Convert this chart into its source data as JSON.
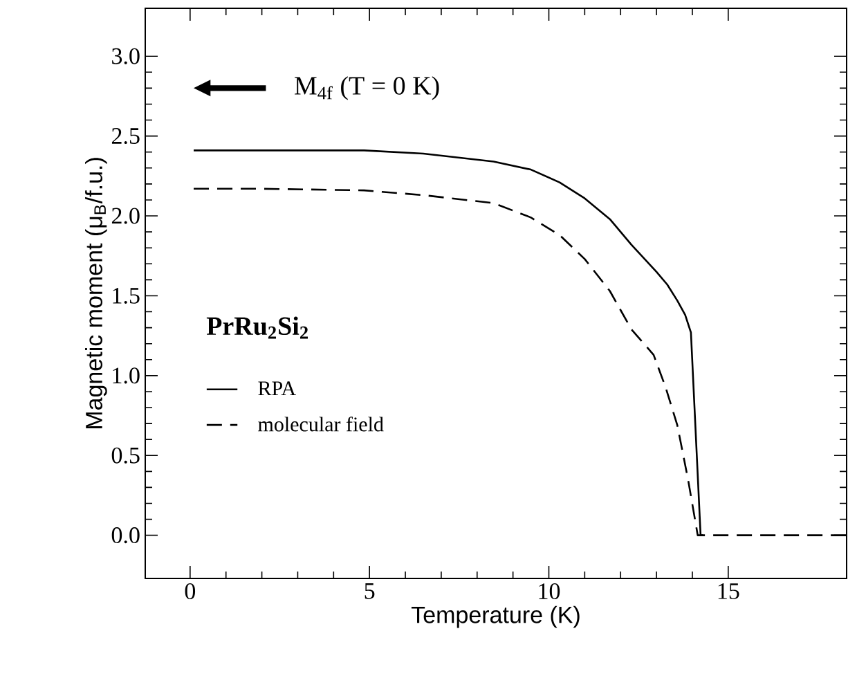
{
  "chart_data": {
    "type": "line",
    "xlabel": "Temperature (K)",
    "ylabel": "Magnetic moment (μ$_{B}$/f.u.)",
    "xlim": [
      -1.25,
      18.3
    ],
    "ylim": [
      -0.27,
      3.3
    ],
    "xticks": [
      0,
      5,
      10,
      15
    ],
    "yticks": [
      {
        "value": 0,
        "label": "0.0"
      },
      {
        "value": 0.5,
        "label": "0.5"
      },
      {
        "value": 1,
        "label": "1.0"
      },
      {
        "value": 1.5,
        "label": "1.5"
      },
      {
        "value": 2,
        "label": "2.0"
      },
      {
        "value": 2.5,
        "label": "2.5"
      },
      {
        "value": 3,
        "label": "3.0"
      }
    ],
    "series": [
      {
        "name": "RPA",
        "color": "#000000",
        "line_style": "solid",
        "x": [
          0.1,
          2,
          4.85,
          6.5,
          8.46,
          9.5,
          10.3,
          11.0,
          11.7,
          12.3,
          13.0,
          13.3,
          13.58,
          13.8,
          13.96,
          14.23,
          14.3
        ],
        "values": [
          2.41,
          2.41,
          2.41,
          2.39,
          2.34,
          2.29,
          2.21,
          2.11,
          1.98,
          1.82,
          1.65,
          1.57,
          1.47,
          1.38,
          1.27,
          0,
          0
        ]
      },
      {
        "name": "molecular field",
        "color": "#000000",
        "line_style": "dashed",
        "x": [
          0.1,
          2,
          4.85,
          6.5,
          8.46,
          9.5,
          10.3,
          11.0,
          11.7,
          12.3,
          12.92,
          13.25,
          13.58,
          13.88,
          14.15,
          18.3
        ],
        "values": [
          2.17,
          2.17,
          2.16,
          2.13,
          2.08,
          1.99,
          1.88,
          1.73,
          1.53,
          1.29,
          1.13,
          0.93,
          0.69,
          0.35,
          0,
          0
        ]
      }
    ],
    "legend": "left",
    "annotations": [
      "M$_{4f}$ (T = 0 K)",
      "PrRu$_{2}$Si$_{2}$"
    ]
  }
}
